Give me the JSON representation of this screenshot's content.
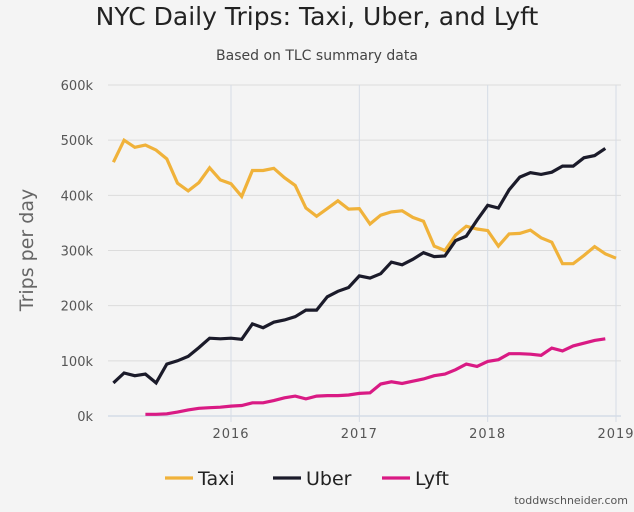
{
  "chart_data": {
    "type": "line",
    "title": "NYC Daily Trips: Taxi, Uber, and Lyft",
    "subtitle": "Based on TLC summary data",
    "xlabel": "",
    "ylabel": "Trips per day",
    "ylim": [
      0,
      600000
    ],
    "y_ticks": [
      0,
      100000,
      200000,
      300000,
      400000,
      500000,
      600000
    ],
    "y_tick_labels": [
      "0k",
      "100k",
      "200k",
      "300k",
      "400k",
      "500k",
      "600k"
    ],
    "x_ticks": [
      "2016",
      "2017",
      "2018",
      "2019"
    ],
    "x_range": [
      "2015-01",
      "2019-01"
    ],
    "grid": true,
    "legend_position": "bottom",
    "credit": "toddwschneider.com",
    "series": [
      {
        "name": "Taxi",
        "color": "#f0b23a",
        "start": "2015-02",
        "values_k": [
          460,
          500,
          487,
          491,
          482,
          466,
          422,
          408,
          423,
          450,
          428,
          421,
          398,
          445,
          445,
          449,
          432,
          418,
          377,
          362,
          376,
          390,
          375,
          376,
          348,
          364,
          370,
          372,
          360,
          353,
          308,
          300,
          328,
          344,
          339,
          336,
          308,
          330,
          331,
          337,
          323,
          315,
          276,
          276,
          291,
          307,
          294,
          286
        ]
      },
      {
        "name": "Uber",
        "color": "#1b1b2a",
        "start": "2015-02",
        "values_k": [
          60,
          78,
          73,
          76,
          60,
          94,
          100,
          108,
          124,
          141,
          140,
          141,
          139,
          167,
          160,
          170,
          174,
          180,
          192,
          192,
          216,
          226,
          233,
          254,
          250,
          258,
          279,
          274,
          284,
          296,
          289,
          290,
          318,
          326,
          355,
          382,
          377,
          410,
          433,
          441,
          438,
          442,
          453,
          453,
          468,
          472,
          485
        ]
      },
      {
        "name": "Lyft",
        "color": "#d91a84",
        "start": "2015-05",
        "values_k": [
          3,
          3,
          4,
          7,
          11,
          14,
          15,
          16,
          18,
          19,
          24,
          24,
          28,
          33,
          36,
          31,
          36,
          37,
          37,
          38,
          41,
          42,
          58,
          62,
          59,
          63,
          67,
          73,
          76,
          84,
          94,
          90,
          99,
          102,
          113,
          113,
          112,
          110,
          123,
          118,
          127,
          132,
          137,
          140
        ]
      }
    ]
  }
}
